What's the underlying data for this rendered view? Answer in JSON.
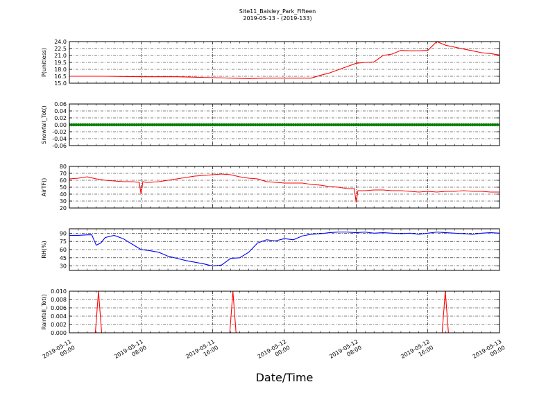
{
  "title_line1": "Site11_Baisley_Park_Fifteen",
  "title_line2": "2019-05-13 - (2019-133)",
  "xlabel": "Date/Time",
  "x_ticks": [
    {
      "l1": "2019-05-11",
      "l2": "00:00"
    },
    {
      "l1": "2019-05-11",
      "l2": "08:00"
    },
    {
      "l1": "2019-05-11",
      "l2": "16:00"
    },
    {
      "l1": "2019-05-12",
      "l2": "00:00"
    },
    {
      "l1": "2019-05-12",
      "l2": "08:00"
    },
    {
      "l1": "2019-05-12",
      "l2": "16:00"
    },
    {
      "l1": "2019-05-13",
      "l2": "00:00"
    }
  ],
  "chart_data": [
    {
      "type": "line",
      "ylabel": "P(unitless)",
      "ylim": [
        15.0,
        24.0
      ],
      "yticks": [
        "15.0",
        "16.5",
        "18.0",
        "19.5",
        "21.0",
        "22.5",
        "24.0"
      ],
      "ytick_values": [
        15.0,
        16.5,
        18.0,
        19.5,
        21.0,
        22.5,
        24.0
      ],
      "color": "#ff0000",
      "grid": true,
      "x_hours": [
        0,
        4,
        8,
        12,
        14,
        16,
        18,
        20,
        22,
        24,
        26,
        27,
        28,
        29,
        30,
        31,
        32,
        33,
        34,
        35,
        36,
        37,
        38,
        39,
        40,
        41,
        42,
        43,
        44,
        45,
        46,
        47,
        48
      ],
      "values": [
        16.5,
        16.5,
        16.4,
        16.4,
        16.3,
        16.2,
        16.1,
        16.0,
        16.1,
        16.1,
        16.1,
        16.1,
        16.7,
        17.2,
        17.9,
        18.6,
        19.3,
        19.5,
        19.6,
        21.0,
        21.3,
        22.1,
        22.0,
        22.0,
        22.1,
        24.0,
        23.2,
        22.8,
        22.4,
        22.0,
        21.6,
        21.4,
        21.1
      ]
    },
    {
      "type": "scatter",
      "ylabel": "Snowfall_Tot()",
      "ylim": [
        -0.06,
        0.06
      ],
      "yticks": [
        "-0.06",
        "-0.04",
        "-0.02",
        "0.00",
        "0.02",
        "0.04",
        "0.06"
      ],
      "ytick_values": [
        -0.06,
        -0.04,
        -0.02,
        0.0,
        0.02,
        0.04,
        0.06
      ],
      "color": "#008000",
      "grid": true,
      "constant_value": 0.0
    },
    {
      "type": "line",
      "ylabel": "AirTF()",
      "ylim": [
        20,
        80
      ],
      "yticks": [
        "20",
        "30",
        "40",
        "50",
        "60",
        "70",
        "80"
      ],
      "ytick_values": [
        20,
        30,
        40,
        50,
        60,
        70,
        80
      ],
      "color": "#ff0000",
      "grid": true,
      "x_hours": [
        0,
        1,
        2,
        3,
        4,
        5,
        6,
        7,
        7.8,
        8.0,
        8.2,
        8.5,
        9,
        10,
        11,
        12,
        13,
        14,
        15,
        16,
        17,
        18,
        19,
        20,
        21,
        22,
        23,
        24,
        25,
        26,
        27,
        28,
        29,
        30,
        31,
        31.8,
        32.0,
        32.2,
        33,
        34,
        35,
        36,
        37,
        38,
        39,
        40,
        41,
        42,
        43,
        44,
        45,
        46,
        47,
        48
      ],
      "values": [
        62,
        63,
        65,
        62,
        60,
        59,
        58,
        58,
        57,
        40,
        58,
        57,
        57,
        58,
        60,
        62,
        64,
        66,
        67,
        68,
        69,
        68,
        65,
        63,
        62,
        58,
        57,
        56,
        56,
        56,
        54,
        53,
        51,
        50,
        48,
        48,
        28,
        45,
        45,
        46,
        46,
        45,
        45,
        44,
        43,
        44,
        43,
        44,
        44,
        45,
        44,
        44,
        43,
        43
      ]
    },
    {
      "type": "line",
      "ylabel": "RH(%)",
      "ylim": [
        22,
        98
      ],
      "yticks": [
        "30",
        "45",
        "60",
        "75",
        "90"
      ],
      "ytick_values": [
        30,
        45,
        60,
        75,
        90
      ],
      "color": "#0000ff",
      "grid": true,
      "x_hours": [
        0,
        1,
        2,
        2.5,
        3,
        3.5,
        4,
        5,
        6,
        7,
        8,
        9,
        10,
        11,
        12,
        13,
        14,
        15,
        16,
        17,
        18,
        19,
        20,
        21,
        22,
        23,
        24,
        25,
        26,
        27,
        28,
        29,
        30,
        31,
        32,
        33,
        34,
        35,
        36,
        37,
        38,
        39,
        40,
        41,
        42,
        43,
        44,
        45,
        46,
        47,
        48
      ],
      "values": [
        86,
        86,
        87,
        87,
        68,
        72,
        82,
        86,
        80,
        70,
        60,
        58,
        55,
        48,
        44,
        40,
        37,
        34,
        30,
        32,
        44,
        45,
        55,
        72,
        78,
        76,
        80,
        78,
        85,
        88,
        89,
        91,
        92,
        92,
        91,
        92,
        90,
        91,
        90,
        89,
        90,
        88,
        90,
        92,
        91,
        90,
        89,
        88,
        90,
        91,
        90
      ]
    },
    {
      "type": "line",
      "ylabel": "Rainfall_Tot()",
      "ylim": [
        0.0,
        0.01
      ],
      "yticks": [
        "0.000",
        "0.002",
        "0.004",
        "0.006",
        "0.008",
        "0.010"
      ],
      "ytick_values": [
        0.0,
        0.002,
        0.004,
        0.006,
        0.008,
        0.01
      ],
      "color": "#ff0000",
      "grid": true,
      "x_hours": [
        0,
        2.9,
        3.25,
        3.6,
        17.9,
        18.25,
        18.6,
        41.6,
        41.95,
        42.3,
        48
      ],
      "values": [
        0,
        0,
        0.01,
        0,
        0,
        0.01,
        0,
        0,
        0.01,
        0,
        0
      ]
    }
  ]
}
